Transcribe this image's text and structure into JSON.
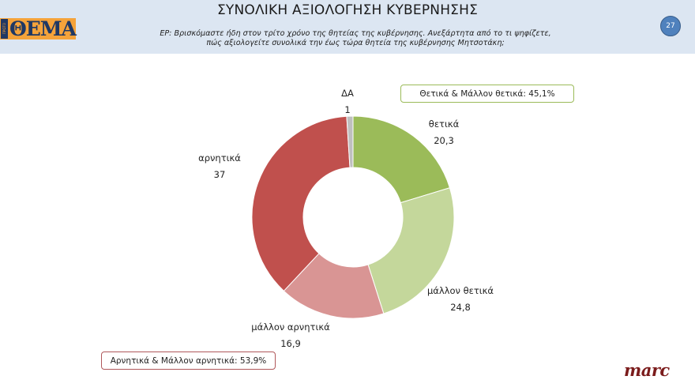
{
  "header": {
    "logo_text": "ΘΕΜΑ",
    "logo_side_text": "ΠΡΩΤΟ",
    "title": "ΣΥΝΟΛΙΚΗ ΑΞΙΟΛΟΓΗΣΗ ΚΥΒΕΡΝΗΣΗΣ",
    "question_line1": "ΕΡ: Βρισκόμαστε ήδη στον τρίτο χρόνο της θητείας της κυβέρνησης. Ανεξάρτητα από το τι ψηφίζετε,",
    "question_line2": "πώς αξιολογείτε συνολικά την έως τώρα θητεία της κυβέρνησης Μητσοτάκη;",
    "page_number": "27"
  },
  "summary": {
    "positive": "Θετικά & Μάλλον θετικά: 45,1%",
    "negative": "Αρνητικά & Μάλλον αρνητικά: 53,9%"
  },
  "brand": "marc",
  "colors": {
    "header_bg": "#dce6f2",
    "positive": "#9bbb59",
    "rather_positive": "#c4d79b",
    "rather_negative": "#d99594",
    "negative": "#c0504d",
    "dk": "#bfbfbf",
    "page_badge": "#4f81bd"
  },
  "chart_data": {
    "type": "pie",
    "variant": "donut",
    "title": "ΣΥΝΟΛΙΚΗ ΑΞΙΟΛΟΓΗΣΗ ΚΥΒΕΡΝΗΣΗΣ",
    "start_angle_deg": 0,
    "direction": "clockwise",
    "categories": [
      "θετικά",
      "μάλλον θετικά",
      "μάλλον αρνητικά",
      "αρνητικά",
      "ΔΑ"
    ],
    "values": [
      20.3,
      24.8,
      16.9,
      37,
      1
    ],
    "value_labels": [
      "20,3",
      "24,8",
      "16,9",
      "37",
      "1"
    ],
    "colors": [
      "#9bbb59",
      "#c4d79b",
      "#d99594",
      "#c0504d",
      "#bfbfbf"
    ],
    "annotations": [
      "Θετικά & Μάλλον θετικά: 45,1%",
      "Αρνητικά & Μάλλον αρνητικά: 53,9%"
    ],
    "legend": "none"
  },
  "labels": [
    {
      "name": "θετικά",
      "value": "20,3"
    },
    {
      "name": "μάλλον θετικά",
      "value": "24,8"
    },
    {
      "name": "μάλλον αρνητικά",
      "value": "16,9"
    },
    {
      "name": "αρνητικά",
      "value": "37"
    },
    {
      "name": "ΔΑ",
      "value": "1"
    }
  ]
}
